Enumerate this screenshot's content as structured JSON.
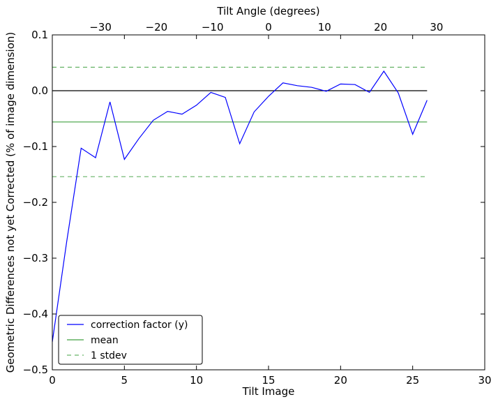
{
  "chart_data": {
    "type": "line",
    "xlabel": "Tilt Image",
    "ylabel": "Geometric Differences not yet Corrected (% of image dimension)",
    "top_xlabel": "Tilt Angle (degrees)",
    "xlim": [
      0,
      30
    ],
    "ylim": [
      -0.5,
      0.1
    ],
    "top_xlim": [
      -38.6,
      38.6
    ],
    "x_ticks": [
      0,
      5,
      10,
      15,
      20,
      25,
      30
    ],
    "x_tick_labels": [
      "0",
      "5",
      "10",
      "15",
      "20",
      "25",
      "30"
    ],
    "y_ticks": [
      0.1,
      0.0,
      -0.1,
      -0.2,
      -0.3,
      -0.4,
      -0.5
    ],
    "y_tick_labels": [
      "0.1",
      "0.0",
      "−0.1",
      "−0.2",
      "−0.3",
      "−0.4",
      "−0.5"
    ],
    "top_ticks": [
      -30,
      -20,
      -10,
      0,
      10,
      20,
      30
    ],
    "top_tick_labels": [
      "−30",
      "−20",
      "−10",
      "0",
      "10",
      "20",
      "30"
    ],
    "grid": false,
    "legend_position": "bottom-left",
    "series": [
      {
        "name": "correction factor (y)",
        "color": "#0000ff",
        "style": "solid",
        "x": [
          0,
          1,
          2,
          3,
          4,
          5,
          6,
          7,
          8,
          9,
          10,
          11,
          12,
          13,
          14,
          15,
          16,
          17,
          18,
          19,
          20,
          21,
          22,
          23,
          24,
          25,
          26
        ],
        "y": [
          -0.45,
          -0.27,
          -0.103,
          -0.12,
          -0.02,
          -0.123,
          -0.086,
          -0.053,
          -0.037,
          -0.042,
          -0.026,
          -0.003,
          -0.012,
          -0.095,
          -0.038,
          -0.01,
          0.014,
          0.009,
          0.006,
          -0.001,
          0.012,
          0.011,
          -0.003,
          0.035,
          -0.004,
          -0.078,
          -0.017
        ]
      },
      {
        "name": "mean",
        "color": "#008000",
        "style": "solid",
        "x": [
          0,
          26
        ],
        "y": [
          -0.056,
          -0.056
        ]
      },
      {
        "name": "1 stdev",
        "color": "#008000",
        "style": "dashed",
        "x": [
          0,
          26
        ],
        "y": [
          0.042,
          0.042
        ]
      },
      {
        "color": "#008000",
        "style": "dashed",
        "x": [
          0,
          26
        ],
        "y": [
          -0.154,
          -0.154
        ]
      },
      {
        "color": "#000000",
        "style": "solid",
        "x": [
          0,
          26
        ],
        "y": [
          0.0,
          0.0
        ]
      }
    ]
  }
}
